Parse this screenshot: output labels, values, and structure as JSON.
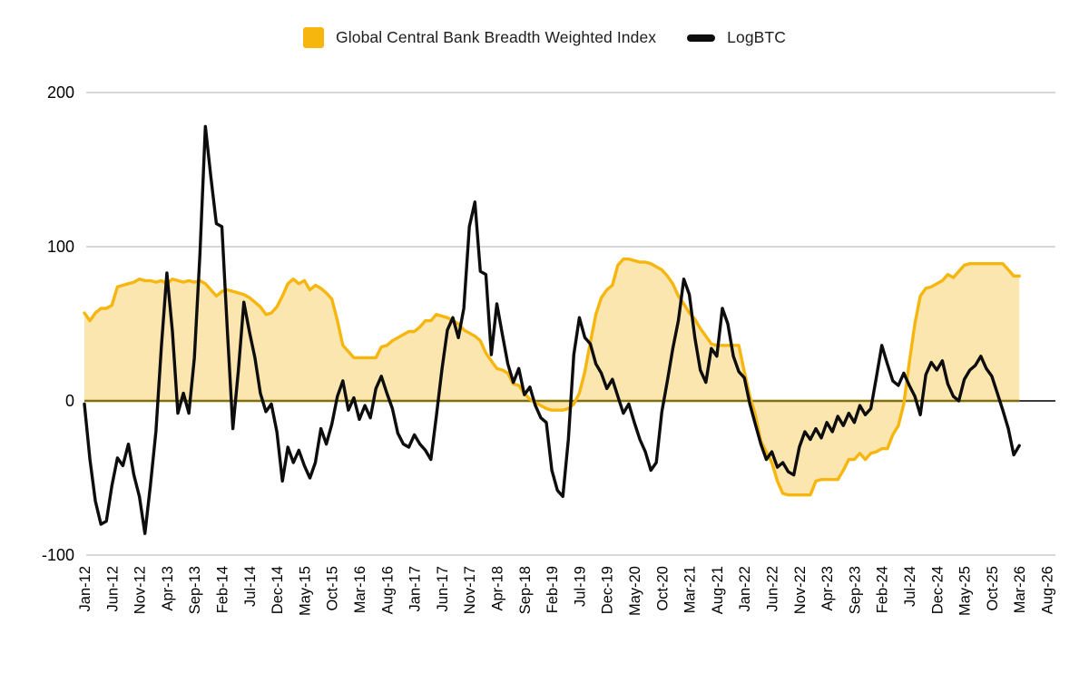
{
  "chart_data": {
    "type": "combo",
    "title": "",
    "xlabel": "",
    "ylabel": "",
    "x_unit": "month",
    "x_start_label": "Jan-12",
    "x_end_label": "Aug-26",
    "x_tick_every_months": 5,
    "x_tick_labels": [
      "Jan-12",
      "Jun-12",
      "Nov-12",
      "Apr-13",
      "Sep-13",
      "Feb-14",
      "Jul-14",
      "Dec-14",
      "May-15",
      "Oct-15",
      "Mar-16",
      "Aug-16",
      "Jan-17",
      "Jun-17",
      "Nov-17",
      "Apr-18",
      "Sep-18",
      "Feb-19",
      "Jul-19",
      "Dec-19",
      "May-20",
      "Oct-20",
      "Mar-21",
      "Aug-21",
      "Jan-22",
      "Jun-22",
      "Nov-22",
      "Apr-23",
      "Sep-23",
      "Feb-24",
      "Jul-24",
      "Dec-24",
      "May-25",
      "Oct-25",
      "Mar-26",
      "Aug-26"
    ],
    "y_ticks": [
      {
        "label": "200",
        "value": 200
      },
      {
        "label": "100",
        "value": 100
      },
      {
        "label": "0",
        "value": 0
      },
      {
        "label": "-100",
        "value": -100
      }
    ],
    "ylim": [
      -100,
      200
    ],
    "grid": "horizontal",
    "legend_position": "top",
    "colors": {
      "index_line": "#F6B60E",
      "index_fill": "#FBE6AF",
      "index_baseline": "#80700F",
      "logbtc_line": "#0D0D0D",
      "gridline": "#CCCCCC",
      "zero_axis": "#1F1F1F",
      "tick_text": "#000000"
    },
    "series": [
      {
        "name": "Global Central Bank Breadth Weighted Index",
        "type": "area",
        "color": "#F6B60E",
        "fill": "#FBE6AF",
        "values": [
          57,
          52,
          57,
          60,
          60,
          62,
          74,
          75,
          76,
          77,
          79,
          78,
          78,
          77,
          78,
          76,
          79,
          78,
          77,
          78,
          77,
          78,
          76,
          72,
          68,
          71,
          72,
          71,
          70,
          69,
          67,
          64,
          61,
          56,
          57,
          61,
          68,
          76,
          79,
          76,
          78,
          72,
          75,
          73,
          70,
          66,
          52,
          36,
          32,
          28,
          28,
          28,
          28,
          28,
          35,
          36,
          39,
          41,
          43,
          45,
          45,
          48,
          52,
          52,
          56,
          55,
          54,
          52,
          50,
          46,
          44,
          42,
          39,
          31,
          26,
          21,
          20,
          18,
          11,
          10,
          5,
          1,
          -1,
          -3,
          -5,
          -6,
          -6,
          -6,
          -5,
          -2,
          5,
          19,
          38,
          56,
          67,
          72,
          75,
          88,
          92,
          92,
          91,
          90,
          90,
          89,
          87,
          85,
          81,
          76,
          68,
          63,
          57,
          53,
          47,
          42,
          37,
          36,
          36,
          36,
          36,
          36,
          19,
          3,
          -9,
          -26,
          -33,
          -40,
          -52,
          -60,
          -61,
          -61,
          -61,
          -61,
          -61,
          -52,
          -51,
          -51,
          -51,
          -51,
          -45,
          -38,
          -38,
          -34,
          -38,
          -34,
          -33,
          -31,
          -31,
          -22,
          -16,
          -2,
          25,
          50,
          68,
          73,
          74,
          76,
          78,
          82,
          80,
          84,
          88,
          89,
          89,
          89,
          89,
          89,
          89,
          89,
          85,
          81,
          81
        ]
      },
      {
        "name": "LogBTC",
        "type": "line",
        "color": "#0D0D0D",
        "values": [
          -2,
          -38,
          -65,
          -80,
          -78,
          -55,
          -37,
          -42,
          -28,
          -48,
          -62,
          -86,
          -55,
          -20,
          35,
          83,
          45,
          -8,
          5,
          -8,
          28,
          95,
          178,
          145,
          115,
          113,
          45,
          -18,
          20,
          64,
          45,
          28,
          5,
          -7,
          -2,
          -20,
          -52,
          -30,
          -40,
          -32,
          -42,
          -50,
          -40,
          -18,
          -28,
          -15,
          3,
          13,
          -6,
          2,
          -12,
          -3,
          -11,
          8,
          16,
          5,
          -5,
          -21,
          -28,
          -30,
          -22,
          -28,
          -32,
          -38,
          -10,
          20,
          46,
          54,
          41,
          60,
          113,
          129,
          84,
          82,
          30,
          63,
          43,
          24,
          12,
          21,
          4,
          9,
          -3,
          -11,
          -14,
          -45,
          -58,
          -62,
          -25,
          30,
          54,
          41,
          37,
          24,
          18,
          8,
          14,
          3,
          -8,
          -2,
          -14,
          -25,
          -33,
          -45,
          -40,
          -7,
          13,
          34,
          52,
          79,
          69,
          41,
          20,
          12,
          34,
          29,
          60,
          50,
          29,
          19,
          15,
          -2,
          -15,
          -28,
          -38,
          -33,
          -43,
          -40,
          -46,
          -48,
          -30,
          -20,
          -25,
          -18,
          -24,
          -14,
          -20,
          -10,
          -16,
          -8,
          -14,
          -3,
          -9,
          -5,
          15,
          36,
          24,
          13,
          10,
          18,
          10,
          3,
          -9,
          17,
          25,
          20,
          26,
          11,
          3,
          0,
          14,
          20,
          23,
          29,
          21,
          16,
          5,
          -6,
          -18,
          -35,
          -29
        ]
      }
    ]
  }
}
